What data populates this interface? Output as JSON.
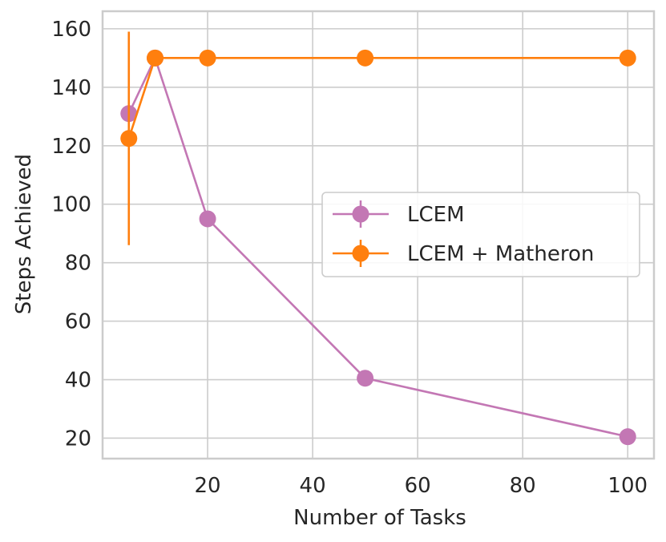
{
  "chart_data": {
    "type": "line",
    "title": "",
    "xlabel": "Number of Tasks",
    "ylabel": "Steps Achieved",
    "xlim": [
      0,
      105
    ],
    "ylim": [
      13,
      166
    ],
    "xticks": [
      20,
      40,
      60,
      80,
      100
    ],
    "yticks": [
      20,
      40,
      60,
      80,
      100,
      120,
      140,
      160
    ],
    "grid": true,
    "legend_position": "center-right",
    "series": [
      {
        "name": "LCEM",
        "color": "#c377b4",
        "x": [
          5,
          10,
          20,
          50,
          100
        ],
        "y": [
          131,
          150,
          95,
          40.5,
          20.5
        ],
        "yerr": [
          0,
          0,
          0,
          0,
          0
        ]
      },
      {
        "name": "LCEM + Matheron",
        "color": "#ff7f0e",
        "x": [
          5,
          10,
          20,
          50,
          100
        ],
        "y": [
          122.5,
          150,
          150,
          150,
          150
        ],
        "yerr": [
          36.5,
          0,
          0,
          0,
          0
        ]
      }
    ]
  }
}
